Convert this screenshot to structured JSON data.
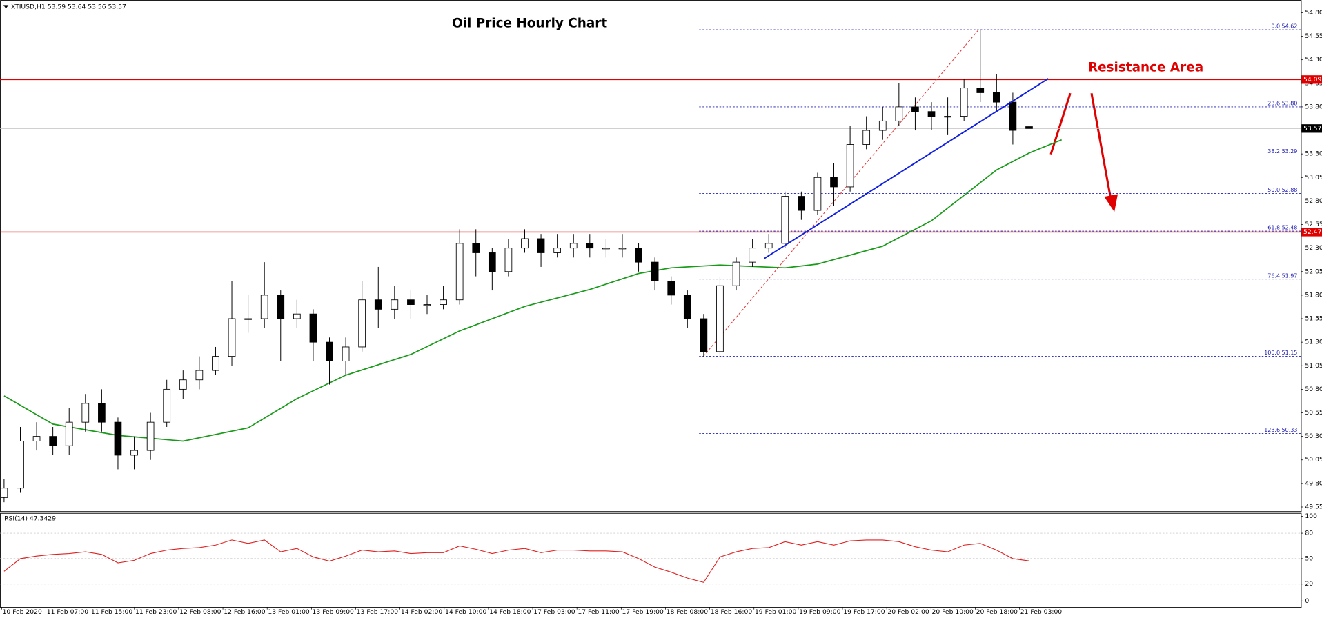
{
  "chart_data": {
    "type": "candlestick",
    "header": "XTIUSD,H1 53.59 53.64 53.56 53.57",
    "title": "Oil Price Hourly Chart",
    "annotation": "Resistance Area",
    "x": [
      0,
      1,
      2,
      3,
      4,
      5,
      6,
      7,
      8,
      9,
      10,
      11,
      12,
      13,
      14,
      15,
      16,
      17,
      18,
      19,
      20,
      21,
      22,
      23,
      24,
      25,
      26,
      27,
      28,
      29,
      30,
      31,
      32,
      33,
      34,
      35,
      36,
      37,
      38,
      39,
      40,
      41,
      42,
      43,
      44,
      45,
      46,
      47,
      48,
      49,
      50,
      51,
      52,
      53,
      54,
      55,
      56,
      57,
      58,
      59,
      60,
      61,
      62,
      63
    ],
    "open": [
      49.65,
      49.75,
      50.25,
      50.3,
      50.2,
      50.45,
      50.65,
      50.45,
      50.1,
      50.15,
      50.45,
      50.8,
      50.9,
      51.0,
      51.15,
      51.55,
      51.55,
      51.8,
      51.55,
      51.6,
      51.3,
      51.1,
      51.25,
      51.75,
      51.65,
      51.75,
      51.7,
      51.7,
      51.75,
      52.35,
      52.25,
      52.05,
      52.3,
      52.4,
      52.25,
      52.3,
      52.35,
      52.3,
      52.3,
      52.3,
      52.15,
      51.95,
      51.8,
      51.55,
      51.2,
      51.9,
      52.15,
      52.3,
      52.35,
      52.85,
      52.7,
      53.05,
      52.95,
      53.4,
      53.55,
      53.65,
      53.8,
      53.75,
      53.7,
      53.7,
      54.0,
      53.95,
      53.85,
      53.59
    ],
    "high": [
      49.85,
      50.4,
      50.45,
      50.4,
      50.6,
      50.75,
      50.8,
      50.5,
      50.3,
      50.55,
      50.9,
      51.0,
      51.15,
      51.25,
      51.95,
      51.8,
      52.15,
      51.85,
      51.75,
      51.65,
      51.35,
      51.35,
      51.95,
      52.1,
      51.9,
      51.85,
      51.8,
      51.9,
      52.5,
      52.5,
      52.3,
      52.4,
      52.5,
      52.45,
      52.45,
      52.45,
      52.45,
      52.4,
      52.45,
      52.35,
      52.2,
      52.0,
      51.85,
      51.6,
      52.0,
      52.2,
      52.4,
      52.45,
      52.9,
      52.9,
      53.1,
      53.2,
      53.6,
      53.7,
      53.8,
      54.05,
      53.9,
      53.85,
      53.9,
      54.1,
      54.62,
      54.15,
      53.95,
      53.64
    ],
    "low": [
      49.6,
      49.7,
      50.15,
      50.1,
      50.1,
      50.35,
      50.35,
      49.95,
      49.95,
      50.05,
      50.4,
      50.7,
      50.8,
      50.95,
      51.05,
      51.4,
      51.45,
      51.1,
      51.45,
      51.1,
      50.85,
      50.95,
      51.2,
      51.45,
      51.55,
      51.55,
      51.6,
      51.65,
      51.7,
      52.0,
      51.85,
      52.0,
      52.25,
      52.1,
      52.2,
      52.2,
      52.2,
      52.2,
      52.2,
      52.05,
      51.85,
      51.7,
      51.45,
      51.15,
      51.15,
      51.85,
      52.1,
      52.25,
      52.3,
      52.6,
      52.65,
      52.75,
      52.9,
      53.35,
      53.45,
      53.6,
      53.55,
      53.55,
      53.5,
      53.65,
      53.85,
      53.75,
      53.4,
      53.56
    ],
    "close": [
      49.75,
      50.25,
      50.3,
      50.2,
      50.45,
      50.65,
      50.45,
      50.1,
      50.15,
      50.45,
      50.8,
      50.9,
      51.0,
      51.15,
      51.55,
      51.55,
      51.8,
      51.55,
      51.6,
      51.3,
      51.1,
      51.25,
      51.75,
      51.65,
      51.75,
      51.7,
      51.7,
      51.75,
      52.35,
      52.25,
      52.05,
      52.3,
      52.4,
      52.25,
      52.3,
      52.35,
      52.3,
      52.3,
      52.3,
      52.15,
      51.95,
      51.8,
      51.55,
      51.2,
      51.9,
      52.15,
      52.3,
      52.35,
      52.85,
      52.7,
      53.05,
      52.95,
      53.4,
      53.55,
      53.65,
      53.8,
      53.75,
      53.7,
      53.7,
      54.0,
      53.95,
      53.85,
      53.55,
      53.57
    ],
    "up_color": "#ffffff",
    "down_color": "#000000",
    "xlim": [
      -0.25,
      79.7
    ],
    "ylim": [
      49.505,
      54.935
    ],
    "yticks": [
      {
        "value": 54.8,
        "label": "54.80"
      },
      {
        "value": 54.55,
        "label": "54.55"
      },
      {
        "value": 54.3,
        "label": "54.30"
      },
      {
        "value": 54.05,
        "label": "54.05"
      },
      {
        "value": 53.8,
        "label": "53.80"
      },
      {
        "value": 53.55,
        "label": "53.55"
      },
      {
        "value": 53.3,
        "label": "53.30"
      },
      {
        "value": 53.05,
        "label": "53.05"
      },
      {
        "value": 52.8,
        "label": "52.80"
      },
      {
        "value": 52.55,
        "label": "52.55"
      },
      {
        "value": 52.3,
        "label": "52.30"
      },
      {
        "value": 52.05,
        "label": "52.05"
      },
      {
        "value": 51.8,
        "label": "51.80"
      },
      {
        "value": 51.55,
        "label": "51.55"
      },
      {
        "value": 51.3,
        "label": "51.30"
      },
      {
        "value": 51.05,
        "label": "51.05"
      },
      {
        "value": 50.8,
        "label": "50.80"
      },
      {
        "value": 50.55,
        "label": "50.55"
      },
      {
        "value": 50.3,
        "label": "50.30"
      },
      {
        "value": 50.05,
        "label": "50.05"
      },
      {
        "value": 49.8,
        "label": "49.80"
      },
      {
        "value": 49.55,
        "label": "49.55"
      }
    ],
    "xticks": [
      {
        "value": -0.15,
        "label": "10 Feb 2020"
      },
      {
        "value": 2.57,
        "label": "11 Feb 07:00"
      },
      {
        "value": 5.29,
        "label": "11 Feb 15:00"
      },
      {
        "value": 8.01,
        "label": "11 Feb 23:00"
      },
      {
        "value": 10.73,
        "label": "12 Feb 08:00"
      },
      {
        "value": 13.45,
        "label": "12 Feb 16:00"
      },
      {
        "value": 16.17,
        "label": "13 Feb 01:00"
      },
      {
        "value": 18.89,
        "label": "13 Feb 09:00"
      },
      {
        "value": 21.61,
        "label": "13 Feb 17:00"
      },
      {
        "value": 24.33,
        "label": "14 Feb 02:00"
      },
      {
        "value": 27.05,
        "label": "14 Feb 10:00"
      },
      {
        "value": 29.77,
        "label": "14 Feb 18:00"
      },
      {
        "value": 32.49,
        "label": "17 Feb 03:00"
      },
      {
        "value": 35.21,
        "label": "17 Feb 11:00"
      },
      {
        "value": 37.93,
        "label": "17 Feb 19:00"
      },
      {
        "value": 40.65,
        "label": "18 Feb 08:00"
      },
      {
        "value": 43.37,
        "label": "18 Feb 16:00"
      },
      {
        "value": 46.09,
        "label": "19 Feb 01:00"
      },
      {
        "value": 48.81,
        "label": "19 Feb 09:00"
      },
      {
        "value": 51.53,
        "label": "19 Feb 17:00"
      },
      {
        "value": 54.25,
        "label": "20 Feb 02:00"
      },
      {
        "value": 56.97,
        "label": "20 Feb 10:00"
      },
      {
        "value": 59.69,
        "label": "20 Feb 18:00"
      },
      {
        "value": 62.41,
        "label": "21 Feb 03:00"
      }
    ],
    "moving_average": {
      "color": "#1a9a1a",
      "x": [
        0,
        3,
        7,
        11,
        15,
        18,
        21,
        25,
        28,
        32,
        36,
        39,
        41,
        44,
        48,
        50,
        54,
        57,
        59,
        61,
        63,
        65
      ],
      "values": [
        50.73,
        50.43,
        50.31,
        50.25,
        50.39,
        50.7,
        50.95,
        51.17,
        51.42,
        51.68,
        51.86,
        52.03,
        52.09,
        52.12,
        52.09,
        52.13,
        52.32,
        52.59,
        52.86,
        53.13,
        53.31,
        53.45
      ]
    },
    "trendline": {
      "color": "#1020e0",
      "x": [
        46.73,
        64.18
      ],
      "values": [
        52.19,
        54.1
      ]
    },
    "fib_swing": {
      "color": "#e03030",
      "x": [
        42.98,
        59.9
      ],
      "values": [
        51.15,
        54.62
      ]
    },
    "fibonacci": {
      "color": "#1a1ab0",
      "x": 42.72,
      "levels": [
        {
          "value": 54.62,
          "label": "0.0 54.62"
        },
        {
          "value": 53.8,
          "label": "23.6 53.80"
        },
        {
          "value": 53.29,
          "label": "38.2 53.29"
        },
        {
          "value": 52.88,
          "label": "50.0 52.88"
        },
        {
          "value": 52.48,
          "label": "61.8 52.48"
        },
        {
          "value": 51.97,
          "label": "76.4 51.97"
        },
        {
          "value": 51.15,
          "label": "100.0 51.15"
        },
        {
          "value": 50.33,
          "label": "123.6 50.33"
        }
      ]
    },
    "hlines": [
      {
        "value": 54.09,
        "color": "#e00000"
      },
      {
        "value": 52.47,
        "color": "#e00000"
      }
    ],
    "current_price": {
      "value": 53.57,
      "color": "#c0c0c0"
    },
    "rsi": {
      "type": "line",
      "title": "RSI(14) 47.3429",
      "color": "#e02020",
      "values": [
        35,
        50,
        53,
        55,
        56,
        58,
        55,
        45,
        48,
        56,
        60,
        62,
        63,
        66,
        72,
        68,
        72,
        58,
        62,
        52,
        47,
        53,
        60,
        58,
        59,
        56,
        57,
        57,
        65,
        61,
        56,
        60,
        62,
        57,
        60,
        60,
        59,
        59,
        58,
        50,
        40,
        34,
        27,
        22,
        52,
        58,
        62,
        63,
        70,
        66,
        70,
        66,
        71,
        72,
        72,
        70,
        64,
        60,
        58,
        66,
        68,
        60,
        50,
        47.3429
      ],
      "ylim": [
        -7.1,
        104.0
      ],
      "yticks": [
        100,
        80,
        50,
        20,
        0
      ]
    }
  }
}
